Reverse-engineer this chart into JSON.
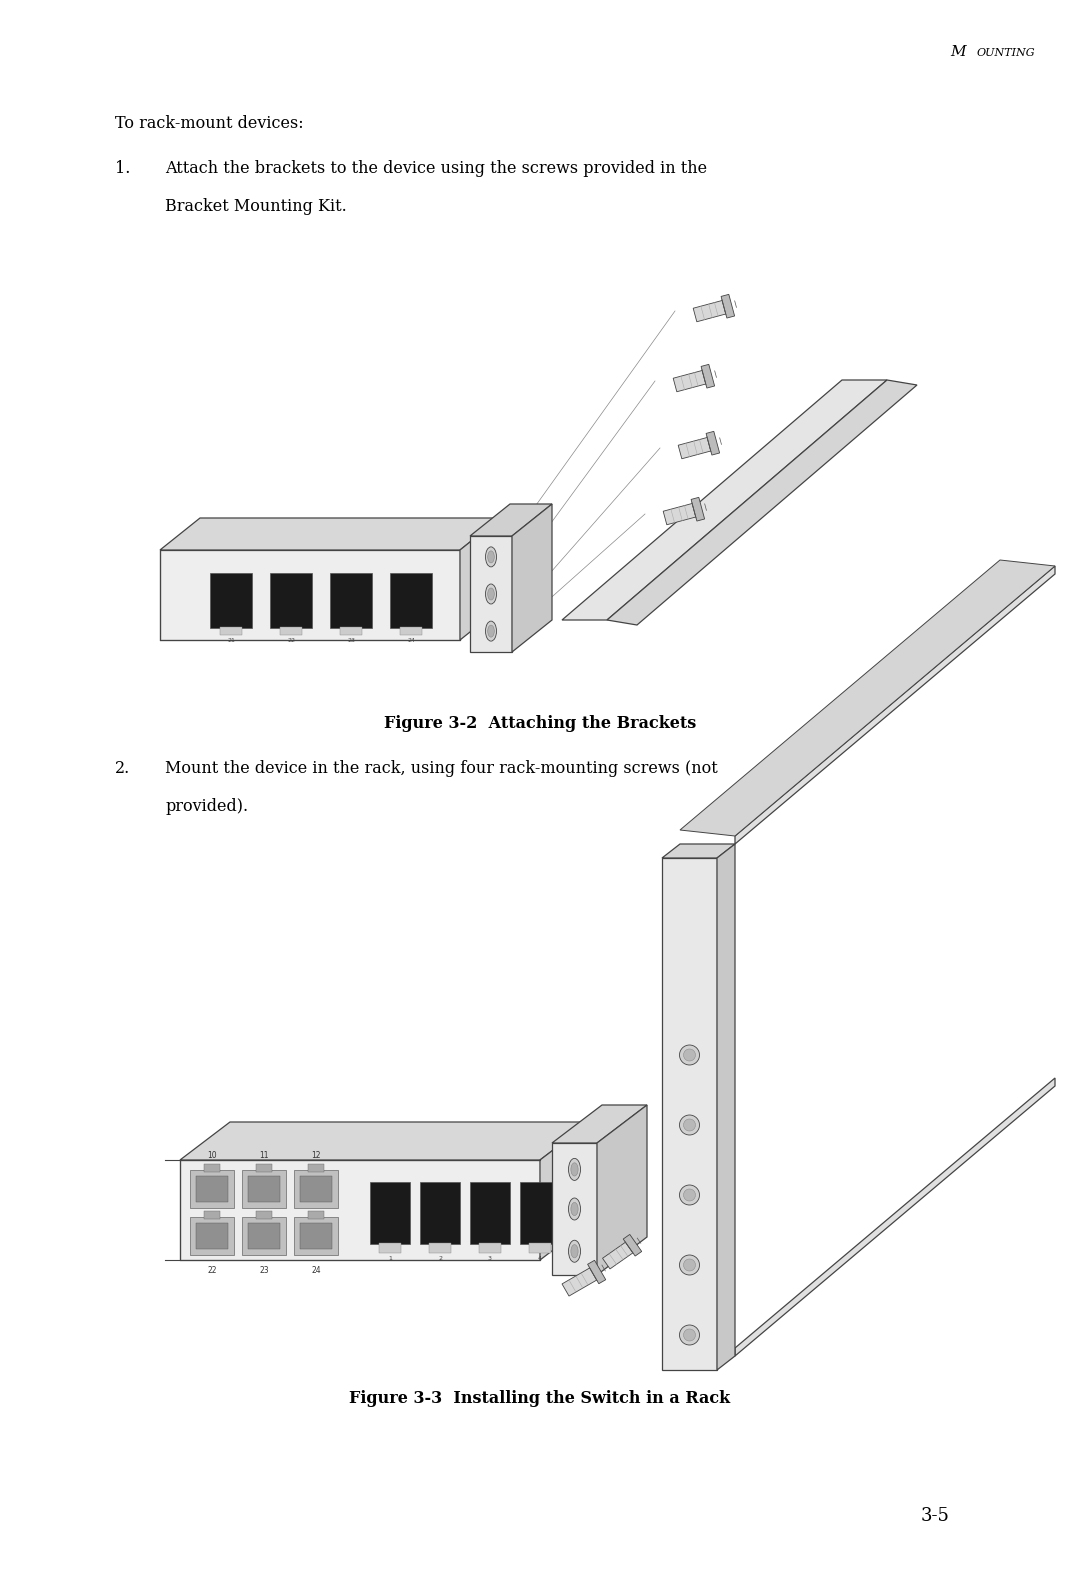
{
  "bg_color": "#ffffff",
  "page_width": 10.8,
  "page_height": 15.7,
  "text_color": "#000000",
  "fig1_caption": "Figure 3-2  Attaching the Brackets",
  "fig2_caption": "Figure 3-3  Installing the Switch in a Rack",
  "page_num": "3-5",
  "header": "MOUNTING"
}
